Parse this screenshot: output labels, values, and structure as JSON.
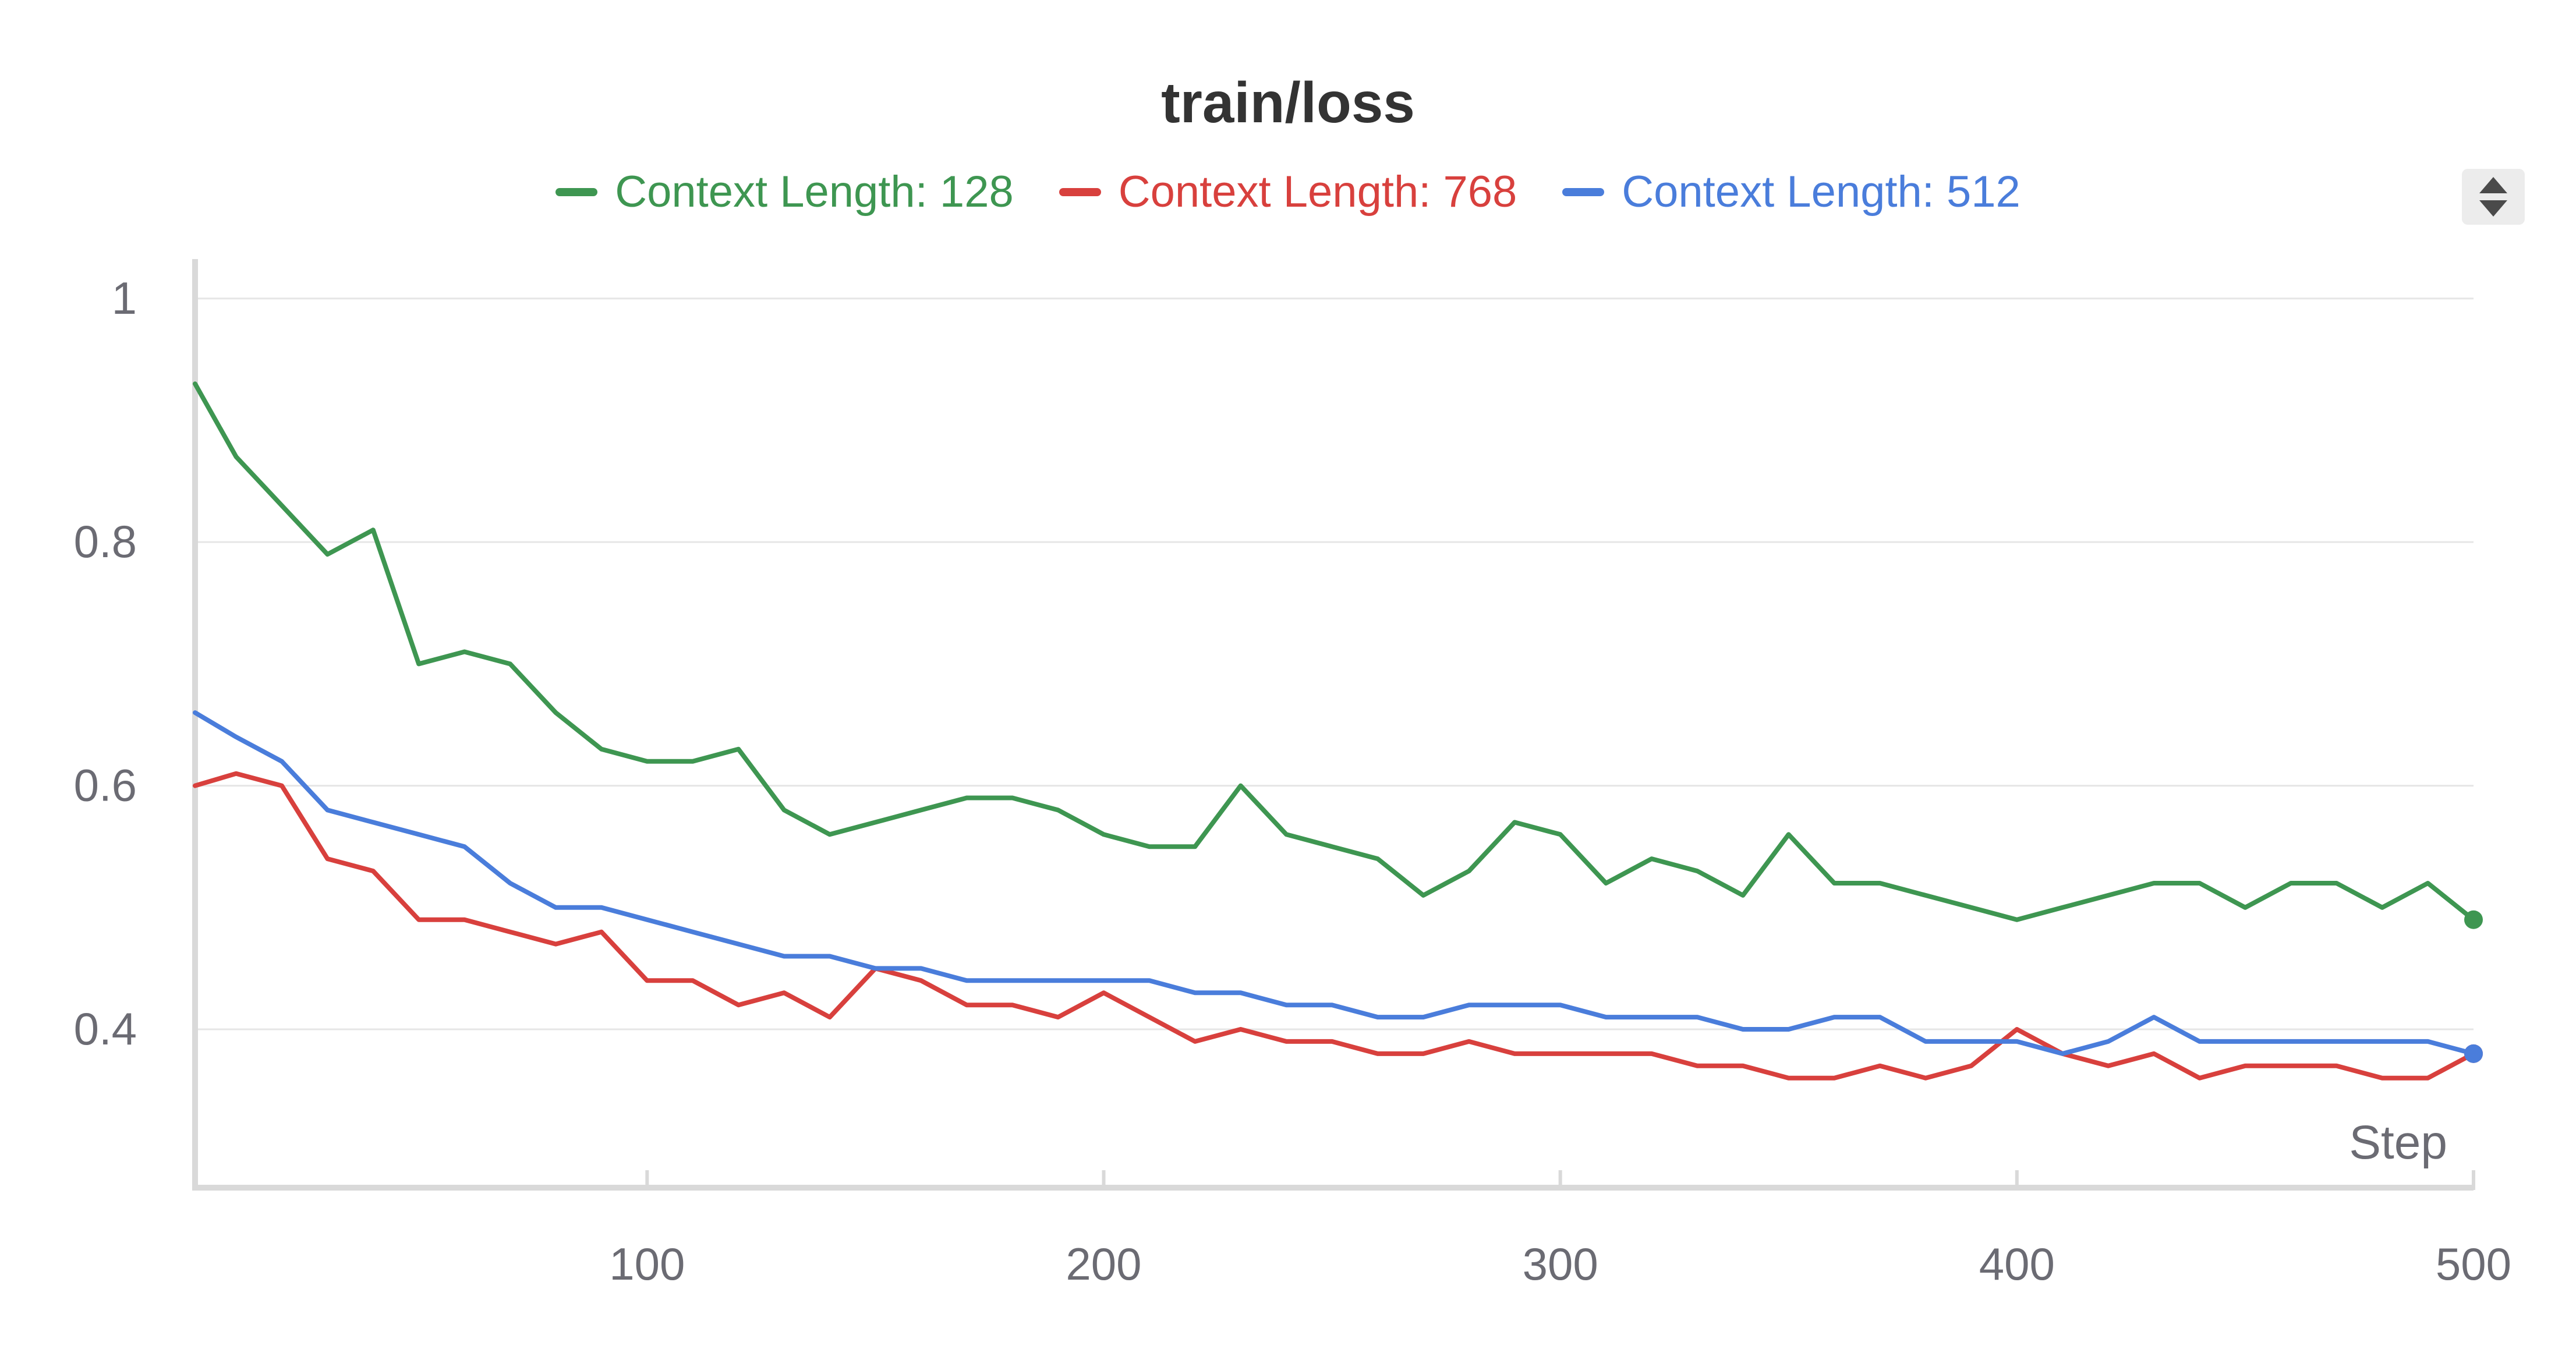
{
  "chart_data": {
    "type": "line",
    "title": "train/loss",
    "xlabel": "Step",
    "ylabel": "",
    "xlim": [
      1,
      500
    ],
    "ylim": [
      0.27,
      1.03
    ],
    "x_ticks": [
      100,
      200,
      300,
      400,
      500
    ],
    "y_ticks": [
      1,
      0.8,
      0.6,
      0.4
    ],
    "y_tick_labels": [
      "1",
      "0.8",
      "0.6",
      "0.4"
    ],
    "grid": true,
    "legend_position": "top-center",
    "x": [
      1,
      10,
      20,
      30,
      40,
      50,
      60,
      70,
      80,
      90,
      100,
      110,
      120,
      130,
      140,
      150,
      160,
      170,
      180,
      190,
      200,
      210,
      220,
      230,
      240,
      250,
      260,
      270,
      280,
      290,
      300,
      310,
      320,
      330,
      340,
      350,
      360,
      370,
      380,
      390,
      400,
      410,
      420,
      430,
      440,
      450,
      460,
      470,
      480,
      490,
      500
    ],
    "series": [
      {
        "name": "Context Length: 128",
        "color": "#3e9651",
        "values": [
          0.93,
          0.87,
          0.83,
          0.79,
          0.81,
          0.7,
          0.71,
          0.7,
          0.66,
          0.63,
          0.62,
          0.62,
          0.63,
          0.58,
          0.56,
          0.57,
          0.58,
          0.59,
          0.59,
          0.58,
          0.56,
          0.55,
          0.55,
          0.6,
          0.56,
          0.55,
          0.54,
          0.51,
          0.53,
          0.57,
          0.56,
          0.52,
          0.54,
          0.53,
          0.51,
          0.56,
          0.52,
          0.52,
          0.51,
          0.5,
          0.49,
          0.5,
          0.51,
          0.52,
          0.52,
          0.5,
          0.52,
          0.52,
          0.5,
          0.52,
          0.49
        ],
        "end_value": 0.49
      },
      {
        "name": "Context Length: 768",
        "color": "#d8403d",
        "values": [
          0.6,
          0.61,
          0.6,
          0.54,
          0.53,
          0.49,
          0.49,
          0.48,
          0.47,
          0.48,
          0.44,
          0.44,
          0.42,
          0.43,
          0.41,
          0.45,
          0.44,
          0.42,
          0.42,
          0.41,
          0.43,
          0.41,
          0.39,
          0.4,
          0.39,
          0.39,
          0.38,
          0.38,
          0.39,
          0.38,
          0.38,
          0.38,
          0.38,
          0.37,
          0.37,
          0.36,
          0.36,
          0.37,
          0.36,
          0.37,
          0.4,
          0.38,
          0.37,
          0.38,
          0.36,
          0.37,
          0.37,
          0.37,
          0.36,
          0.36,
          0.38
        ],
        "end_value": 0.38
      },
      {
        "name": "Context Length: 512",
        "color": "#4a7ddb",
        "values": [
          0.66,
          0.64,
          0.62,
          0.58,
          0.57,
          0.56,
          0.55,
          0.52,
          0.5,
          0.5,
          0.49,
          0.48,
          0.47,
          0.46,
          0.46,
          0.45,
          0.45,
          0.44,
          0.44,
          0.44,
          0.44,
          0.44,
          0.43,
          0.43,
          0.42,
          0.42,
          0.41,
          0.41,
          0.42,
          0.42,
          0.42,
          0.41,
          0.41,
          0.41,
          0.4,
          0.4,
          0.41,
          0.41,
          0.39,
          0.39,
          0.39,
          0.38,
          0.39,
          0.41,
          0.39,
          0.39,
          0.39,
          0.39,
          0.39,
          0.39,
          0.38
        ],
        "end_value": 0.38
      }
    ]
  },
  "ui": {
    "legend_toggle_icon": "chevron-updown-icon",
    "grid_color": "#e6e6e6",
    "axis_color": "#d9d9d9",
    "tick_label_color": "#6b6b73"
  }
}
